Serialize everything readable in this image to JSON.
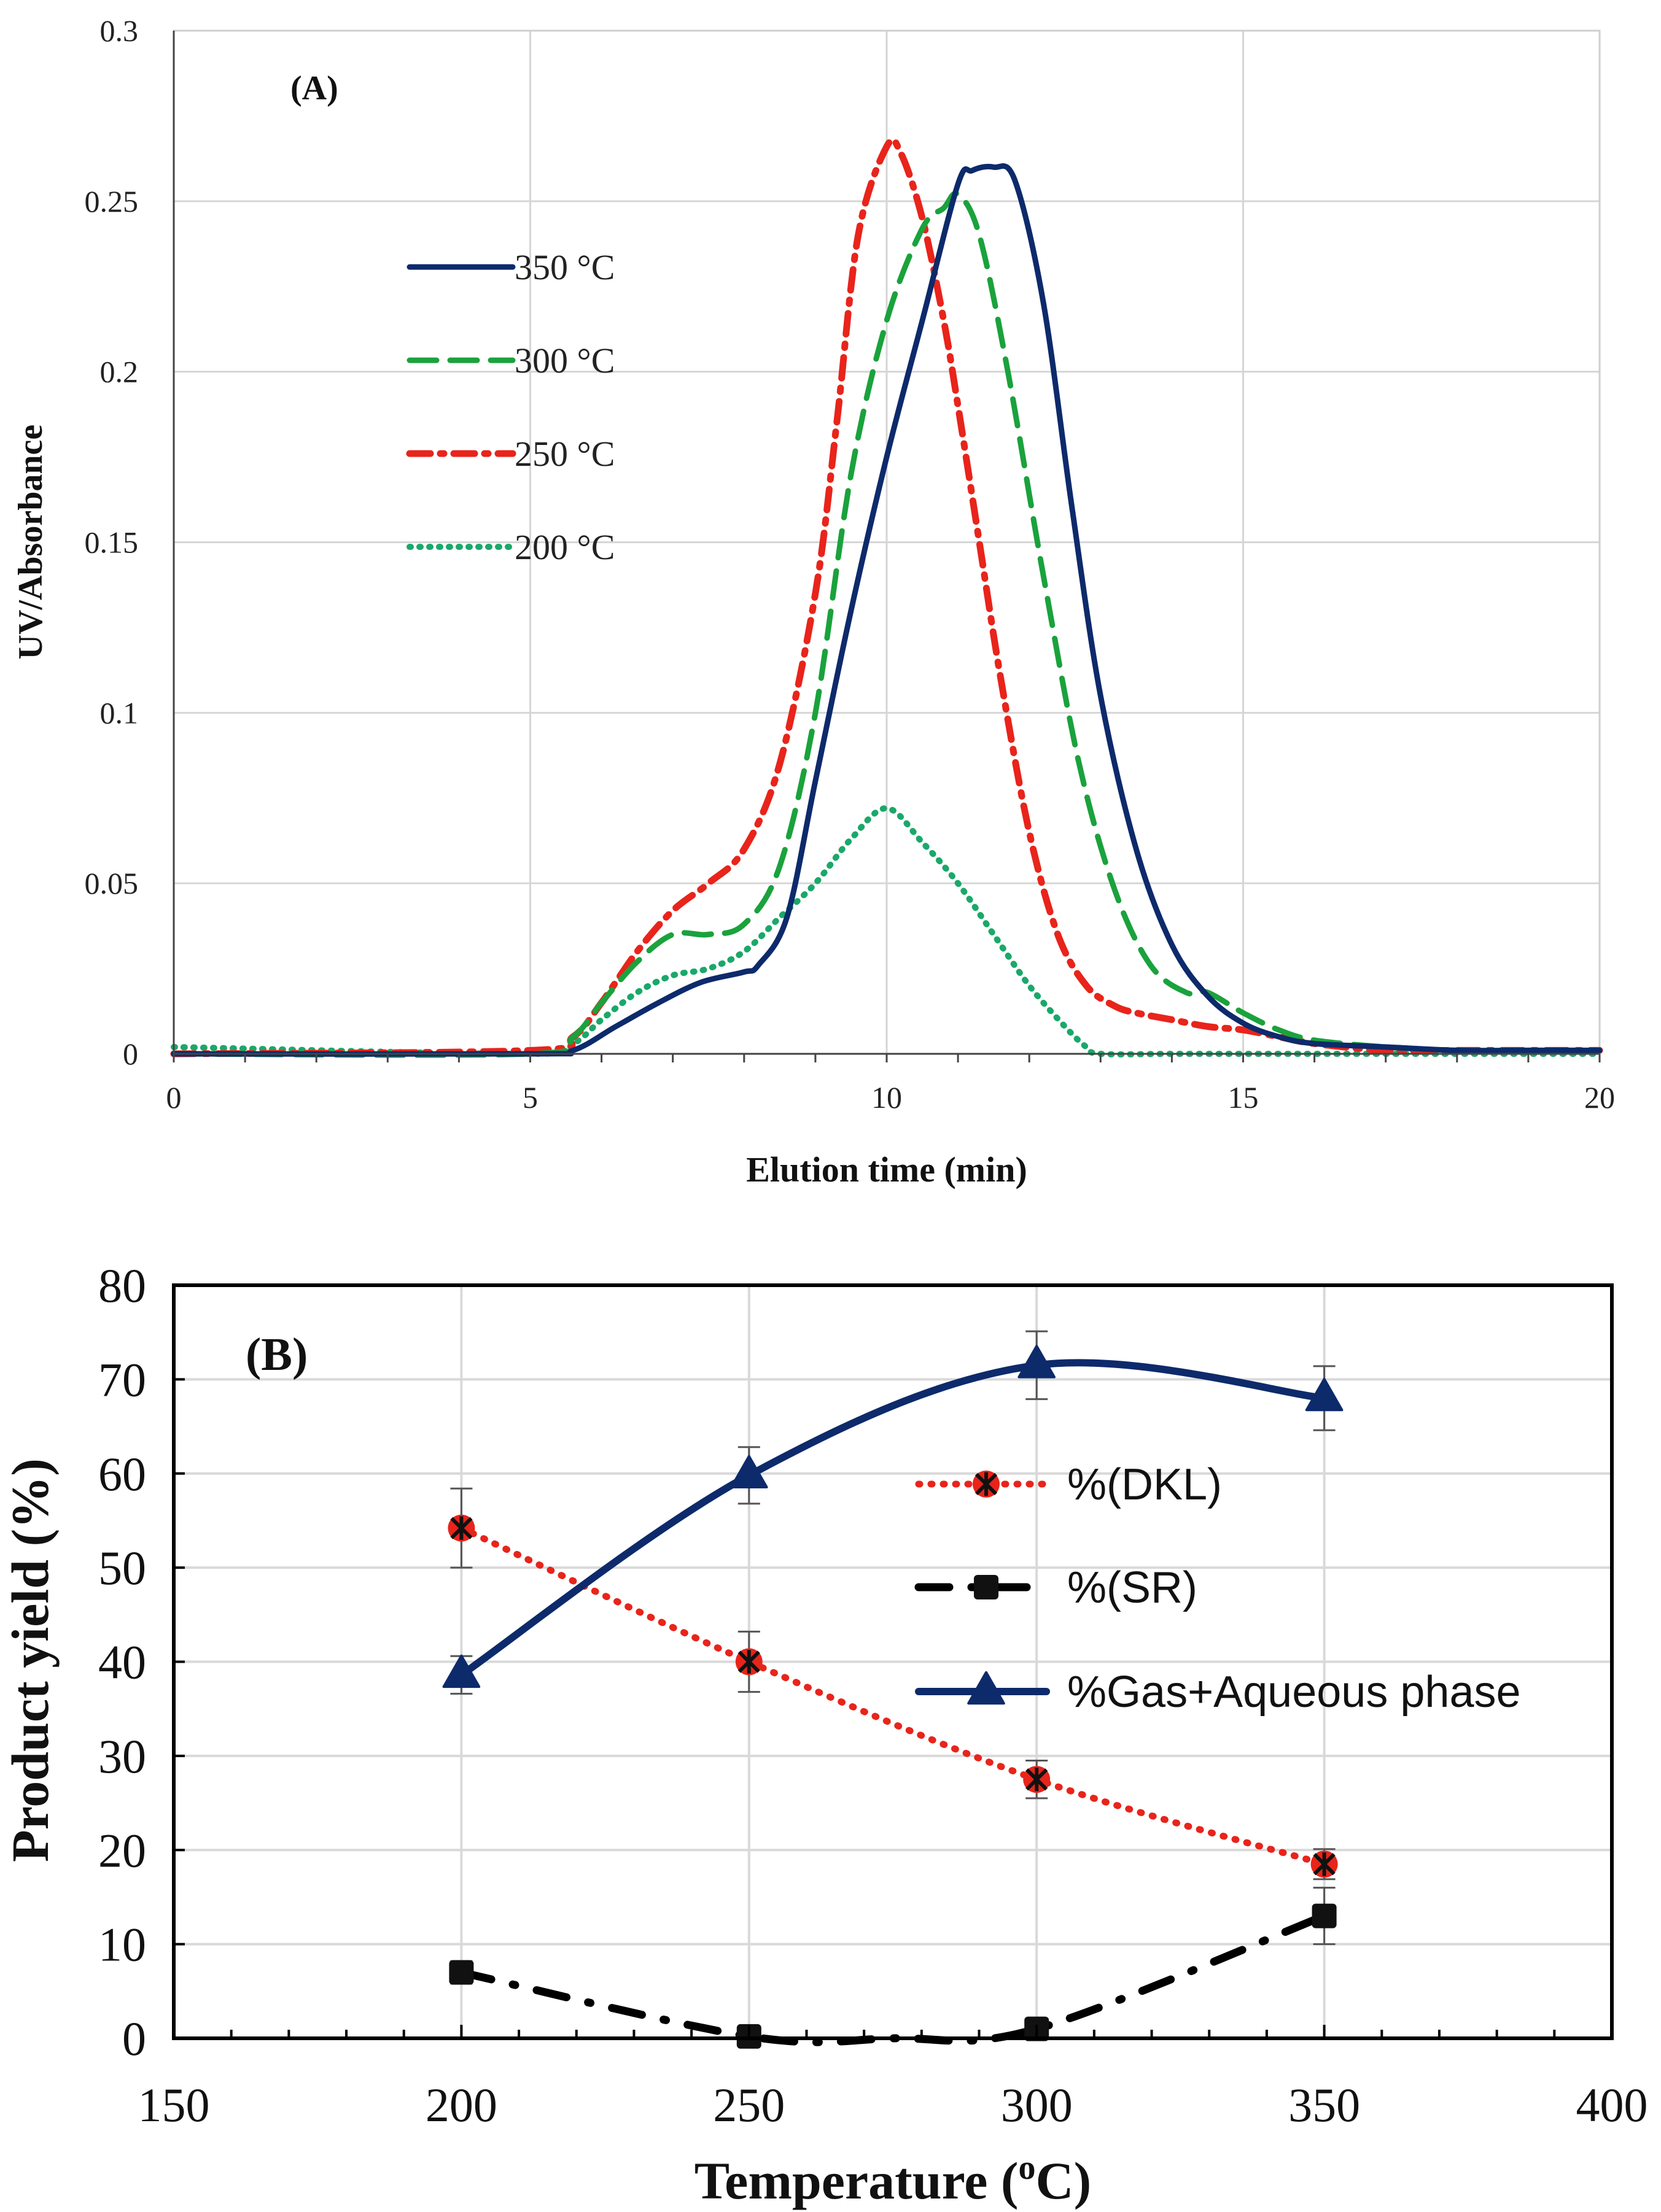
{
  "chart_data": [
    {
      "type": "line",
      "panel": "(A)",
      "title": "",
      "xlabel": "Elution time (min)",
      "ylabel": "UV/Absorbance",
      "xlim": [
        0,
        20
      ],
      "ylim": [
        0,
        0.3
      ],
      "xticks": [
        0,
        5,
        10,
        15,
        20
      ],
      "yticks": [
        0,
        0.05,
        0.1,
        0.15,
        0.2,
        0.25,
        0.3
      ],
      "ytick_labels": [
        "0",
        "0.05",
        "0.1",
        "0.15",
        "0.2",
        "0.25",
        "0.3"
      ],
      "grid": true,
      "legend_position": "left",
      "series": [
        {
          "name": "350 °C",
          "color": "#0d2a6b",
          "style": "solid",
          "x": [
            0,
            5.0,
            5.6,
            6.2,
            6.8,
            7.4,
            8.0,
            8.2,
            8.6,
            9.0,
            9.5,
            10.0,
            10.5,
            11.0,
            11.2,
            11.5,
            11.8,
            12.2,
            12.6,
            13.0,
            13.5,
            14.0,
            14.5,
            15.0,
            15.5,
            16.0,
            17.0,
            18.0,
            19.0,
            20.0
          ],
          "y": [
            0,
            0,
            0.001,
            0.008,
            0.015,
            0.021,
            0.024,
            0.026,
            0.04,
            0.08,
            0.13,
            0.175,
            0.215,
            0.255,
            0.259,
            0.26,
            0.256,
            0.22,
            0.16,
            0.105,
            0.06,
            0.032,
            0.017,
            0.009,
            0.005,
            0.003,
            0.002,
            0.001,
            0.001,
            0.001
          ]
        },
        {
          "name": "300 °C",
          "color": "#1aa23c",
          "style": "longdash",
          "x": [
            0,
            5.0,
            5.6,
            6.0,
            6.5,
            7.0,
            7.5,
            8.0,
            8.5,
            9.0,
            9.5,
            10.0,
            10.5,
            10.8,
            11.0,
            11.3,
            11.7,
            12.2,
            12.7,
            13.2,
            13.7,
            14.2,
            14.5,
            15.0,
            15.5,
            16.0,
            17.0,
            18.0,
            19.0,
            20.0
          ],
          "y": [
            0,
            0,
            0.005,
            0.015,
            0.027,
            0.035,
            0.035,
            0.038,
            0.055,
            0.1,
            0.17,
            0.215,
            0.242,
            0.248,
            0.252,
            0.24,
            0.2,
            0.14,
            0.085,
            0.048,
            0.026,
            0.018,
            0.018,
            0.012,
            0.007,
            0.004,
            0.002,
            0.001,
            0.001,
            0.001
          ]
        },
        {
          "name": "250 °C",
          "color": "#e8241b",
          "style": "dashdot",
          "x": [
            0,
            5.0,
            5.6,
            6.0,
            6.5,
            7.0,
            7.5,
            8.0,
            8.5,
            9.0,
            9.3,
            9.6,
            10.0,
            10.2,
            10.5,
            10.8,
            11.0,
            11.3,
            11.6,
            12.0,
            12.4,
            12.8,
            13.2,
            13.5,
            14.0,
            14.5,
            15.0,
            15.5,
            16.0,
            17.0,
            18.0,
            19.0,
            20.0
          ],
          "y": [
            0,
            0.001,
            0.005,
            0.015,
            0.03,
            0.042,
            0.05,
            0.06,
            0.085,
            0.135,
            0.185,
            0.24,
            0.266,
            0.264,
            0.245,
            0.215,
            0.19,
            0.15,
            0.11,
            0.065,
            0.035,
            0.02,
            0.014,
            0.012,
            0.01,
            0.008,
            0.007,
            0.005,
            0.003,
            0.001,
            0.001,
            0.001,
            0.001
          ]
        },
        {
          "name": "200 °C",
          "color": "#1aa86a",
          "style": "dotted",
          "x": [
            0,
            5.0,
            5.6,
            6.0,
            6.5,
            7.0,
            7.5,
            8.0,
            8.5,
            9.0,
            9.5,
            10.0,
            10.5,
            11.0,
            11.5,
            12.0,
            12.5,
            12.8,
            13.0,
            14.0,
            15.0,
            16.0,
            17.0,
            18.0,
            19.0,
            20.0
          ],
          "y": [
            0.002,
            0,
            0.003,
            0.01,
            0.018,
            0.023,
            0.025,
            0.03,
            0.04,
            0.05,
            0.063,
            0.072,
            0.062,
            0.05,
            0.035,
            0.02,
            0.008,
            0.002,
            0,
            0,
            0,
            0,
            0,
            0,
            0,
            0
          ]
        }
      ]
    },
    {
      "type": "line",
      "panel": "(B)",
      "title": "",
      "xlabel_main": "Temperature (",
      "xlabel_sup": "o",
      "xlabel_unit": "C)",
      "ylabel": "Product yield (%)",
      "xlim": [
        150,
        400
      ],
      "ylim": [
        0,
        80
      ],
      "xticks": [
        150,
        200,
        250,
        300,
        350,
        400
      ],
      "yticks": [
        0,
        10,
        20,
        30,
        40,
        50,
        60,
        70,
        80
      ],
      "grid": true,
      "legend_position": "center-right",
      "series": [
        {
          "name": "%(DKL)",
          "color": "#e8241b",
          "style": "dotted",
          "marker": "cross-circle",
          "x": [
            200,
            250,
            300,
            350
          ],
          "y": [
            54.2,
            40.0,
            27.5,
            18.5
          ],
          "err": [
            4.2,
            3.2,
            2.0,
            1.6
          ]
        },
        {
          "name": "%(SR)",
          "color": "#000000",
          "style": "dashdot",
          "marker": "square",
          "x": [
            200,
            250,
            300,
            350
          ],
          "y": [
            7.0,
            0.2,
            1.0,
            13.0
          ],
          "err": [
            1.2,
            0,
            0,
            3.0
          ]
        },
        {
          "name": "%Gas+Aqueous phase",
          "color": "#0d2a6b",
          "style": "solid",
          "marker": "triangle",
          "x": [
            200,
            250,
            300,
            350
          ],
          "y": [
            38.6,
            59.8,
            71.5,
            68.0
          ],
          "err": [
            2.0,
            3.0,
            3.6,
            3.4
          ]
        }
      ]
    }
  ]
}
